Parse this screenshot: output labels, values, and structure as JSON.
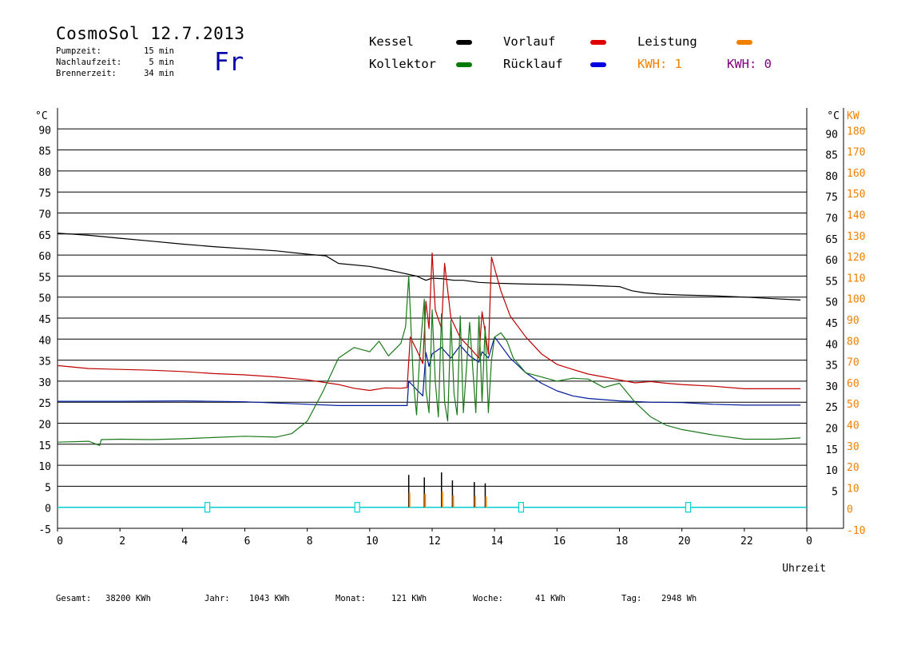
{
  "header": {
    "title": "CosmoSol 12.7.2013",
    "weekday": "Fr",
    "info": [
      {
        "label": "Pumpzeit:",
        "value": "15 min"
      },
      {
        "label": "Nachlaufzeit:",
        "value": "5 min"
      },
      {
        "label": "Brennerzeit:",
        "value": "34 min"
      }
    ]
  },
  "legend": {
    "kessel": "Kessel",
    "vorlauf": "Vorlauf",
    "leistung": "Leistung",
    "kollektor": "Kollektor",
    "ruecklauf": "Rücklauf",
    "kwh1": "KWH: 1",
    "kwh0": "KWH: 0"
  },
  "colors": {
    "kessel": "#000000",
    "vorlauf": "#e00000",
    "leistung": "#f08000",
    "kollektor": "#007a00",
    "ruecklauf": "#0000e0",
    "kwh0": "#800080",
    "marker": "#00d0d0",
    "line_vorlauf": "#c00000",
    "line_ruecklauf": "#001a9a",
    "line_kollektor": "#1a7a1a"
  },
  "footer": [
    {
      "label": "Gesamt:",
      "value": "38200 KWh"
    },
    {
      "label": "Jahr:",
      "value": "1043 KWh"
    },
    {
      "label": "Monat:",
      "value": "121 KWh"
    },
    {
      "label": "Woche:",
      "value": "41 KWh"
    },
    {
      "label": "Tag:",
      "value": "2948 Wh"
    }
  ],
  "chart_data": {
    "type": "line",
    "xlabel": "Uhrzeit",
    "ylabel_left": "°C",
    "ylabel_right": "°C",
    "ylabel_right2": "KW",
    "xlim": [
      0,
      24
    ],
    "ylim": [
      -5,
      95
    ],
    "x_ticks": [
      "0",
      "2",
      "4",
      "6",
      "8",
      "10",
      "12",
      "14",
      "16",
      "18",
      "20",
      "22",
      "0"
    ],
    "y_ticks_left": [
      "90",
      "85",
      "80",
      "75",
      "70",
      "65",
      "60",
      "55",
      "50",
      "45",
      "40",
      "35",
      "30",
      "25",
      "20",
      "15",
      "10",
      "5",
      "0",
      "-5"
    ],
    "y_ticks_right": [
      "90",
      "85",
      "80",
      "75",
      "70",
      "65",
      "60",
      "55",
      "50",
      "45",
      "40",
      "35",
      "30",
      "25",
      "20",
      "15",
      "10",
      "5"
    ],
    "y_ticks_kw": [
      "180",
      "170",
      "160",
      "150",
      "140",
      "130",
      "120",
      "110",
      "100",
      "90",
      "80",
      "70",
      "60",
      "50",
      "40",
      "30",
      "20",
      "10",
      "0",
      "-10"
    ],
    "grid": true,
    "series": [
      {
        "name": "Kessel",
        "color_key": "kessel",
        "x": [
          0,
          1,
          2,
          3,
          4,
          5,
          6,
          7,
          8,
          8.6,
          9,
          10,
          10.5,
          11,
          11.5,
          11.8,
          12,
          12.3,
          12.7,
          13,
          13.5,
          14,
          15,
          16,
          17,
          18,
          18.4,
          18.8,
          19.3,
          20,
          21,
          22,
          23,
          23.8
        ],
        "y": [
          65.2,
          64.7,
          64,
          63.3,
          62.6,
          62,
          61.5,
          61,
          60.2,
          59.8,
          58,
          57.3,
          56.6,
          55.8,
          55,
          54,
          54.5,
          54.4,
          54,
          54,
          53.5,
          53.3,
          53.1,
          53,
          52.8,
          52.5,
          51.5,
          51,
          50.7,
          50.5,
          50.3,
          50,
          49.6,
          49.3
        ]
      },
      {
        "name": "Vorlauf",
        "color_key": "line_vorlauf",
        "x": [
          0,
          1,
          2,
          3,
          4,
          5,
          6,
          7,
          8,
          9,
          9.5,
          10,
          10.5,
          11,
          11.2,
          11.3,
          11.5,
          11.7,
          11.8,
          11.9,
          12,
          12.1,
          12.3,
          12.4,
          12.6,
          12.7,
          12.9,
          13.2,
          13.5,
          13.6,
          13.8,
          13.9,
          14.2,
          14.5,
          15,
          15.5,
          16,
          16.5,
          17,
          17.5,
          18,
          18.5,
          19,
          19.5,
          20,
          21,
          22,
          23,
          23.8
        ],
        "y": [
          33.7,
          33,
          32.8,
          32.6,
          32.3,
          31.8,
          31.5,
          31,
          30.3,
          29.2,
          28.3,
          27.8,
          28.4,
          28.3,
          28.5,
          40.5,
          37.5,
          34.2,
          49,
          42.5,
          60.5,
          47,
          42.5,
          58,
          45,
          43.5,
          40.3,
          38,
          35.5,
          46.5,
          36.5,
          59.5,
          51.5,
          45.5,
          40.5,
          36.5,
          34,
          32.8,
          31.7,
          31,
          30.3,
          29.6,
          29.9,
          29.5,
          29.2,
          28.8,
          28.2,
          28.2,
          28.2
        ]
      },
      {
        "name": "Rücklauf",
        "color_key": "line_ruecklauf",
        "x": [
          0,
          2,
          4,
          6,
          8,
          9,
          10,
          11,
          11.2,
          11.25,
          11.5,
          11.7,
          11.8,
          11.9,
          12,
          12.3,
          12.6,
          12.9,
          13.2,
          13.5,
          13.6,
          13.8,
          14,
          14.5,
          15,
          15.5,
          16,
          16.5,
          17,
          18,
          19,
          20,
          21,
          22,
          23,
          23.8
        ],
        "y": [
          25.2,
          25.2,
          25.3,
          25.1,
          24.5,
          24.2,
          24.2,
          24.2,
          24.2,
          30,
          28,
          26.5,
          36.8,
          33.5,
          36.5,
          38,
          35.5,
          38.5,
          36,
          34.5,
          37,
          35.5,
          40.5,
          35.5,
          32,
          29.5,
          27.7,
          26.5,
          25.9,
          25.3,
          25,
          24.9,
          24.5,
          24.3,
          24.3,
          24.3
        ]
      },
      {
        "name": "Kollektor",
        "color_key": "line_kollektor",
        "x": [
          0,
          1,
          1.35,
          1.4,
          2,
          3,
          4,
          5,
          6,
          7,
          7.5,
          8,
          8.5,
          9,
          9.5,
          10,
          10.3,
          10.6,
          11,
          11.15,
          11.25,
          11.4,
          11.5,
          11.6,
          11.75,
          11.8,
          11.9,
          12,
          12.1,
          12.2,
          12.3,
          12.4,
          12.5,
          12.6,
          12.7,
          12.8,
          12.9,
          13,
          13.2,
          13.4,
          13.5,
          13.6,
          13.7,
          13.8,
          13.9,
          14,
          14.2,
          14.4,
          14.6,
          15,
          15.5,
          16,
          16.5,
          17,
          17.5,
          18,
          18.5,
          19,
          19.5,
          20,
          21,
          22,
          23,
          23.8
        ],
        "y": [
          15.5,
          15.7,
          14.7,
          16.1,
          16.2,
          16.1,
          16.3,
          16.6,
          16.9,
          16.7,
          17.5,
          20.5,
          27.5,
          35.5,
          38,
          37,
          39.5,
          36,
          39,
          43,
          55,
          30,
          22,
          36,
          49.5,
          28,
          22.5,
          47,
          30,
          21.5,
          46,
          25,
          20.5,
          44.5,
          27,
          22,
          45.5,
          22.5,
          44,
          22.5,
          45.5,
          25,
          43,
          22.5,
          35,
          40.5,
          41.5,
          39.5,
          35.5,
          32,
          31,
          30,
          30.7,
          30.5,
          28.5,
          29.5,
          25,
          21.5,
          19.5,
          18.5,
          17.2,
          16.2,
          16.2,
          16.5
        ]
      }
    ],
    "leistung": {
      "name": "Leistung",
      "color_key": "leistung",
      "x": [
        11.25,
        11.75,
        12.3,
        12.65,
        13.35,
        13.7
      ],
      "y": [
        7.7,
        7.1,
        8.3,
        6.4,
        6.0,
        5.7
      ]
    },
    "markers": {
      "color_key": "marker",
      "x": [
        4.8,
        9.6,
        14.85,
        20.2
      ]
    }
  }
}
